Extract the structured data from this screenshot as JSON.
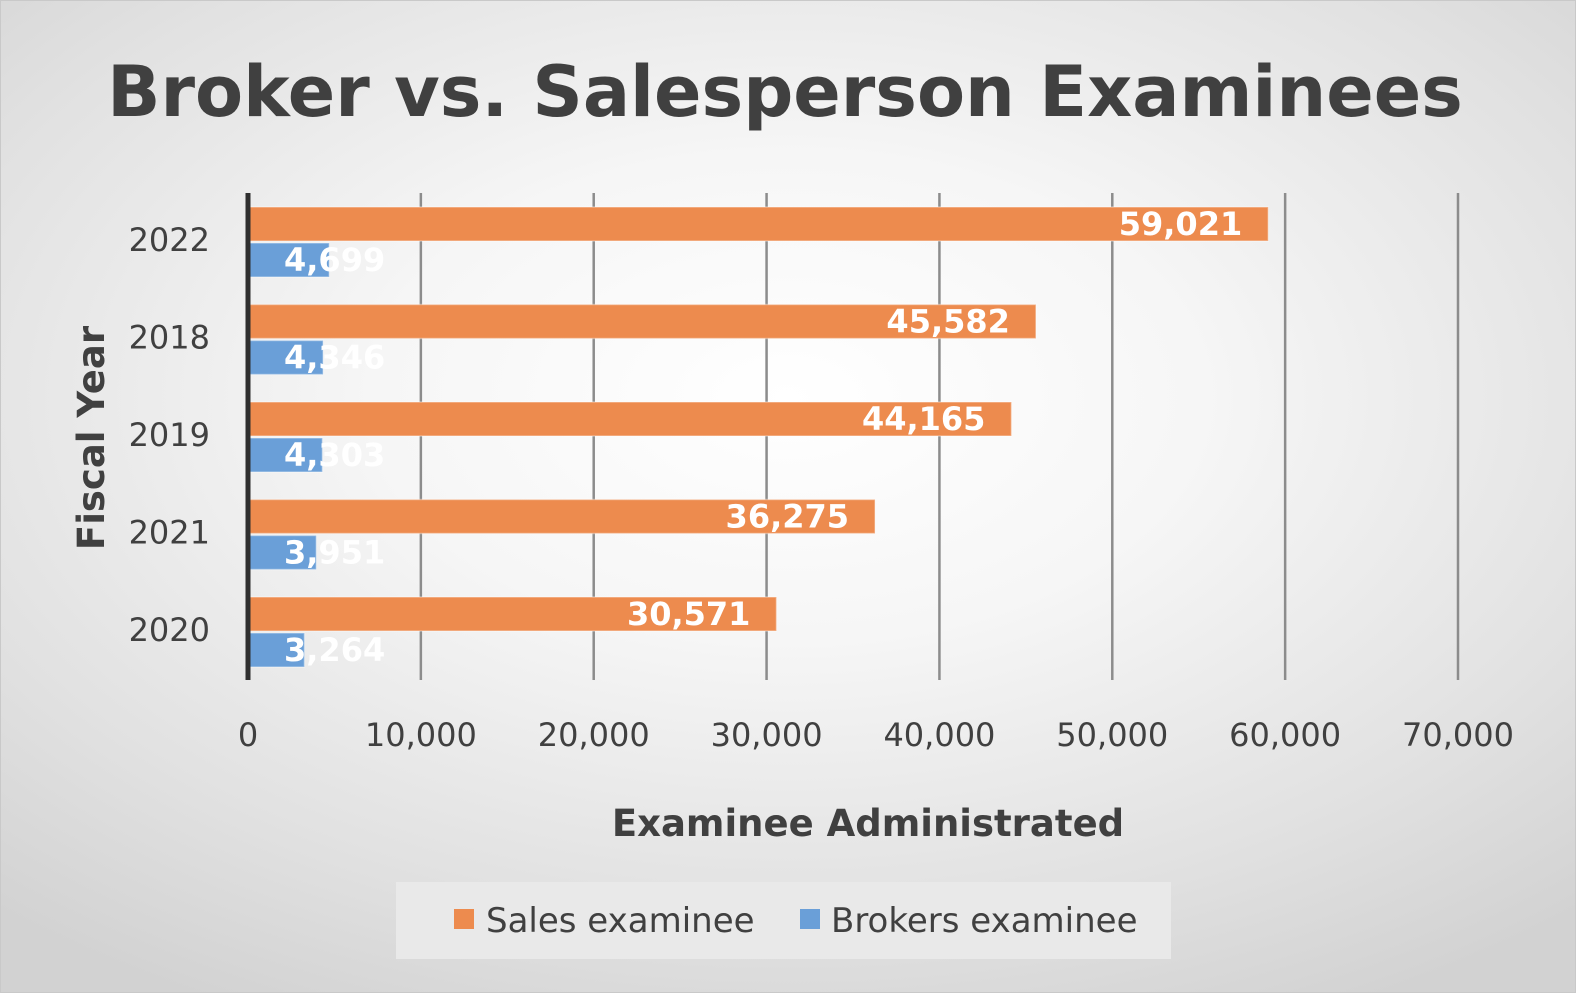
{
  "chart_data": {
    "type": "bar",
    "orientation": "horizontal",
    "title": "Broker vs. Salesperson Examinees",
    "xlabel": "Examinee Administrated",
    "ylabel": "Fiscal Year",
    "categories": [
      "2022",
      "2018",
      "2019",
      "2021",
      "2020"
    ],
    "series": [
      {
        "name": "Sales examinee",
        "color": "#ED8B4E",
        "values": [
          59021,
          45582,
          44165,
          36275,
          30571
        ],
        "labels": [
          "59,021",
          "45,582",
          "44,165",
          "36,275",
          "30,571"
        ]
      },
      {
        "name": "Brokers examinee",
        "color": "#6A9FD8",
        "values": [
          4699,
          4346,
          4303,
          3951,
          3264
        ],
        "labels": [
          "4,699",
          "4,346",
          "4,303",
          "3,951",
          "3,264"
        ]
      }
    ],
    "xlim": [
      0,
      70000
    ],
    "xticks": [
      0,
      10000,
      20000,
      30000,
      40000,
      50000,
      60000,
      70000
    ],
    "xtick_labels": [
      "0",
      "10,000",
      "20,000",
      "30,000",
      "40,000",
      "50,000",
      "60,000",
      "70,000"
    ],
    "grid": "vertical",
    "legend_position": "bottom"
  }
}
